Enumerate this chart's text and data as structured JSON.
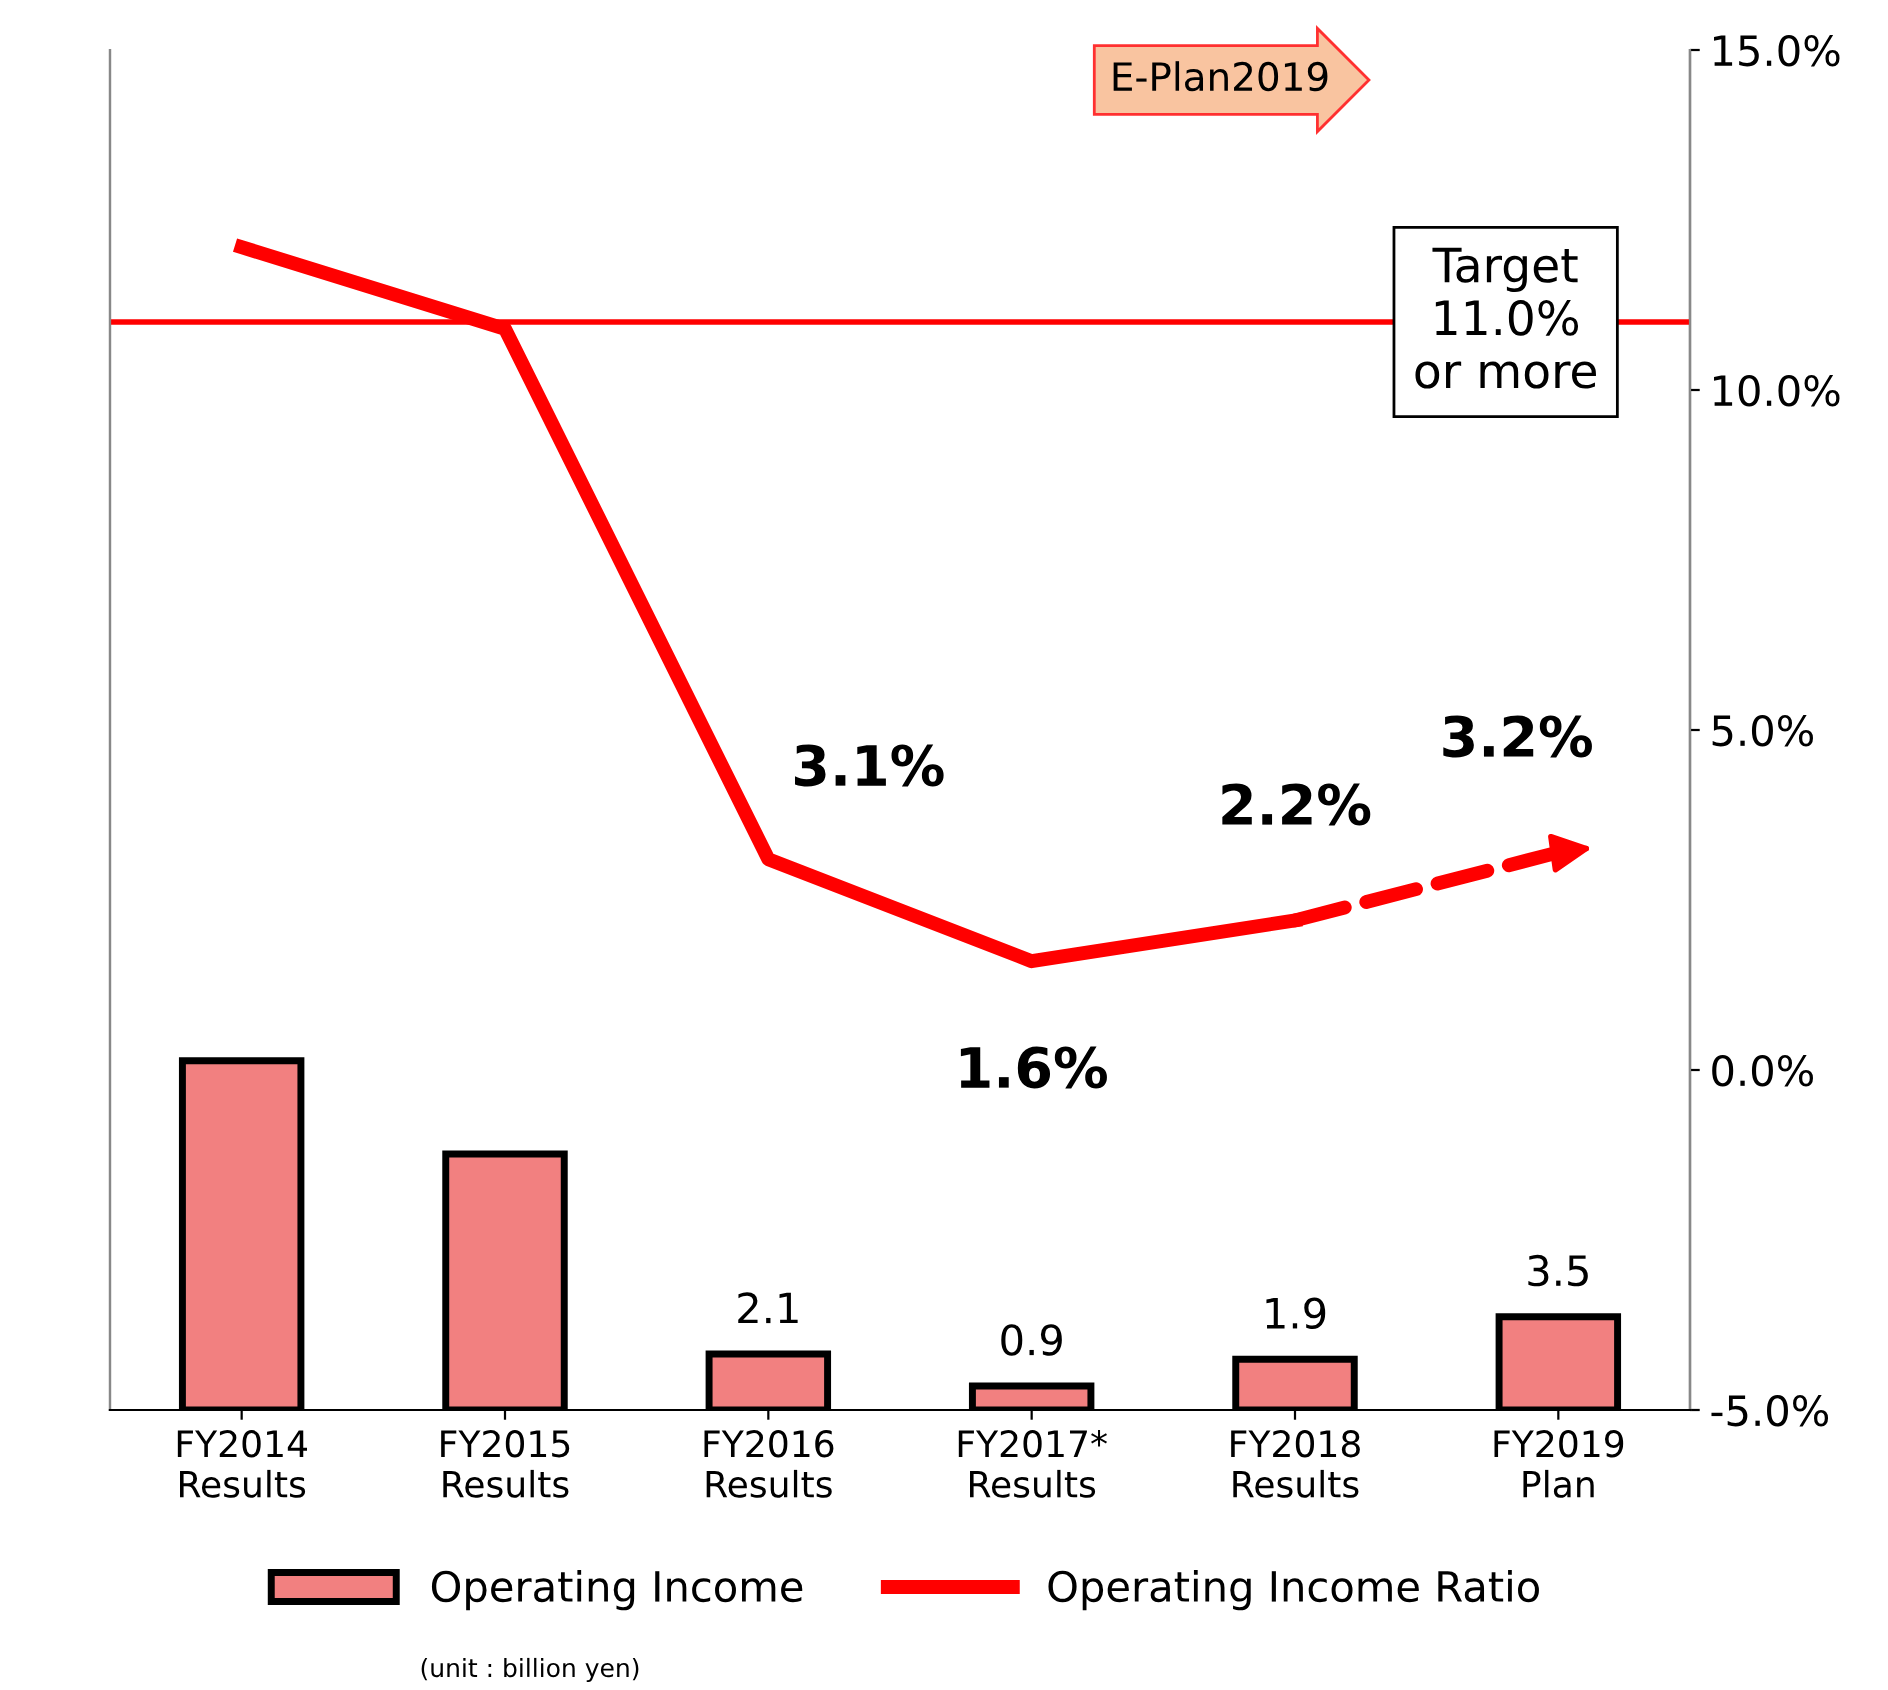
{
  "chart_data": {
    "type": "bar",
    "categories": [
      "FY2014\nResults",
      "FY2015\nResults",
      "FY2016\nResults",
      "FY2017*\nResults",
      "FY2018\nResults",
      "FY2019\nPlan"
    ],
    "series": [
      {
        "name": "Operating Income",
        "color": "#f28080",
        "values": [
          13.1,
          9.6,
          2.1,
          0.9,
          1.9,
          3.5
        ],
        "value_labels": [
          null,
          null,
          "2.1",
          "0.9",
          "1.9",
          "3.5"
        ]
      },
      {
        "name": "Operating Income Ratio",
        "type": "line",
        "axis": "y2",
        "color": "#ff0000",
        "line_style": "solid",
        "values": [
          12.1,
          10.9,
          3.1,
          1.6,
          2.2,
          null
        ],
        "value_labels": [
          null,
          null,
          "3.1%",
          "1.6%",
          "2.2%",
          null
        ]
      },
      {
        "type": "line",
        "axis": "y2",
        "color": "#ff0000",
        "line_style": "dashed",
        "values": [
          null,
          null,
          null,
          null,
          2.2,
          3.2
        ],
        "value_labels": [
          null,
          null,
          null,
          null,
          null,
          "3.2%"
        ]
      }
    ],
    "ylim": [
      0,
      51
    ],
    "y2lim": [
      -5,
      15
    ],
    "y2ticks": [
      {
        "value": -5,
        "label": "-5.0%"
      },
      {
        "value": 0,
        "label": "0.0%"
      },
      {
        "value": 5,
        "label": "5.0%"
      },
      {
        "value": 10,
        "label": "10.0%"
      },
      {
        "value": 15,
        "label": "15.0%"
      }
    ],
    "ref_lines": [
      {
        "axis": "y2",
        "value": 11.0,
        "label": "Target\n11.0%\nor more",
        "color": "#ff0000"
      }
    ],
    "annotations": [
      "E-Plan2019",
      "(unit : billion yen)"
    ],
    "legend": "bottom",
    "grid": false
  }
}
